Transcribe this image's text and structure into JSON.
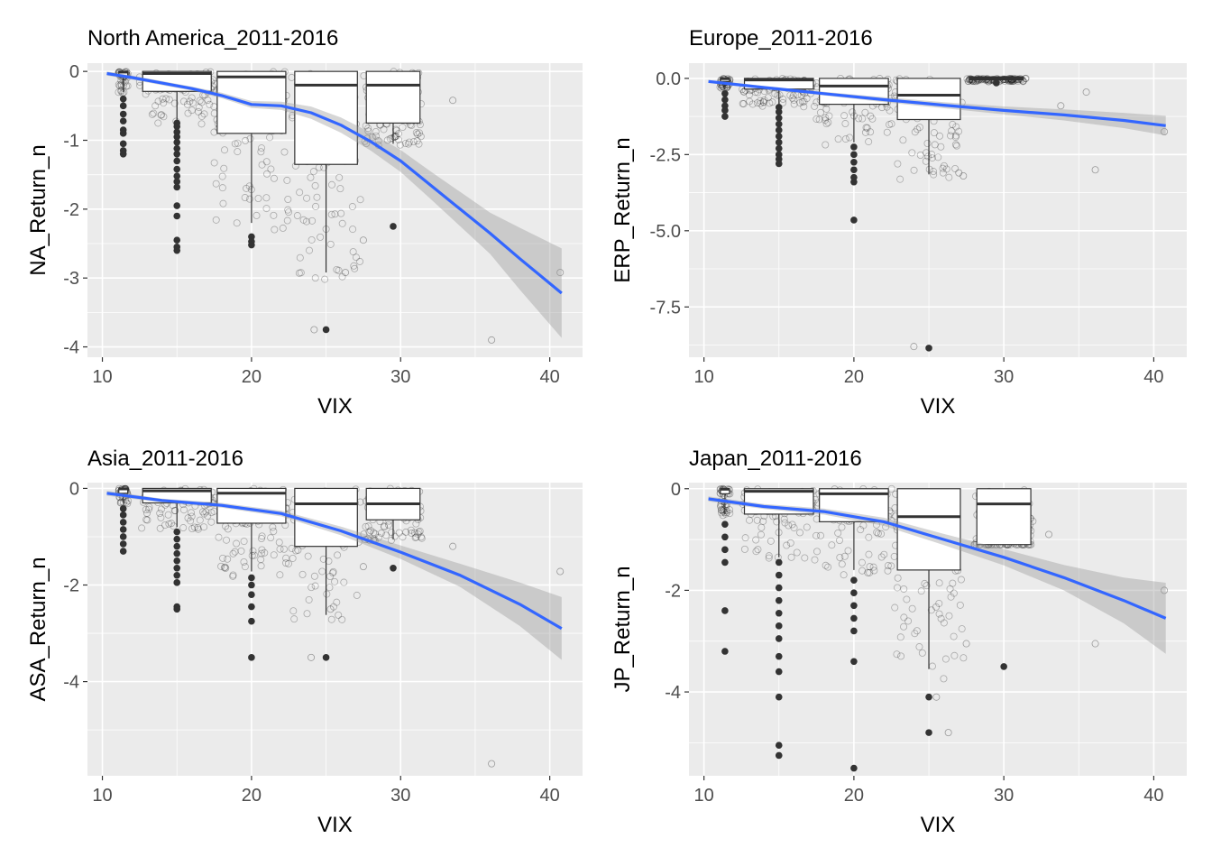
{
  "chart_data": [
    {
      "type": "boxplot-scatter-smooth",
      "title": "North America_2011-2016",
      "xlabel": "VIX",
      "ylabel": "NA_Return_n",
      "xlim": [
        9.0,
        42.2
      ],
      "ylim": [
        -4.15,
        0.12
      ],
      "x_ticks": [
        10,
        20,
        30,
        40
      ],
      "y_ticks": [
        0,
        -1,
        -2,
        -3,
        -4
      ],
      "boxes": [
        {
          "x": 15,
          "half_width": 2.3,
          "q1": -0.29,
          "median": -0.03,
          "q3": 0.0,
          "whisker_low": -0.72,
          "whisker_high": 0.0,
          "outliers": [
            -0.75,
            -0.8,
            -0.88,
            -0.95,
            -1.03,
            -1.12,
            -1.2,
            -1.3,
            -1.42,
            -1.52,
            -1.6,
            -1.68,
            -1.95,
            -2.1,
            -2.45,
            -2.55,
            -2.6
          ]
        },
        {
          "x": 20,
          "half_width": 2.3,
          "q1": -0.9,
          "median": -0.08,
          "q3": 0.0,
          "whisker_low": -2.2,
          "whisker_high": 0.0,
          "outliers": [
            -2.4,
            -2.47,
            -2.52
          ]
        },
        {
          "x": 25,
          "half_width": 2.1,
          "q1": -1.35,
          "median": -0.2,
          "q3": 0.0,
          "whisker_low": -2.92,
          "whisker_high": 0.0,
          "outliers": [
            -3.75
          ]
        },
        {
          "x": 29.5,
          "half_width": 1.8,
          "q1": -0.75,
          "median": -0.2,
          "q3": 0.0,
          "whisker_low": -1.05,
          "whisker_high": 0.0,
          "outliers": [
            -2.25
          ]
        },
        {
          "x": 11.4,
          "half_width": 0.3,
          "q1": -0.08,
          "median": -0.01,
          "q3": 0.0,
          "whisker_low": -0.3,
          "whisker_high": 0.0,
          "outliers": [
            -0.4,
            -0.5,
            -0.62,
            -0.72,
            -0.85,
            -0.9,
            -1.05,
            -1.15,
            -1.2
          ]
        }
      ],
      "smooth": {
        "x": [
          10.3,
          12,
          14,
          16,
          18,
          20,
          22,
          24,
          26,
          28,
          30,
          32,
          34,
          36,
          38,
          40.8
        ],
        "y": [
          -0.03,
          -0.09,
          -0.17,
          -0.25,
          -0.35,
          -0.48,
          -0.5,
          -0.6,
          -0.78,
          -1.02,
          -1.3,
          -1.65,
          -2.0,
          -2.35,
          -2.72,
          -3.22
        ],
        "ci_halfwidth": [
          0.03,
          0.03,
          0.03,
          0.03,
          0.04,
          0.05,
          0.06,
          0.09,
          0.11,
          0.13,
          0.16,
          0.2,
          0.25,
          0.3,
          0.45,
          0.65
        ]
      },
      "sparse_points": [
        [
          36.1,
          -3.9
        ],
        [
          40.7,
          -2.92
        ],
        [
          26.3,
          -2.92
        ],
        [
          24.2,
          -3.75
        ],
        [
          27.5,
          -2.45
        ],
        [
          30.7,
          -0.62
        ],
        [
          33.5,
          -0.42
        ]
      ]
    },
    {
      "type": "boxplot-scatter-smooth",
      "title": "Europe_2011-2016",
      "xlabel": "VIX",
      "ylabel": "ERP_Return_n",
      "xlim": [
        9.0,
        42.2
      ],
      "ylim": [
        -9.15,
        0.5
      ],
      "x_ticks": [
        10,
        20,
        30,
        40
      ],
      "y_ticks": [
        0.0,
        -2.5,
        -5.0,
        -7.5
      ],
      "y_tick_labels": [
        "0.0",
        "-2.5",
        "-5.0",
        "-7.5"
      ],
      "boxes": [
        {
          "x": 15,
          "half_width": 2.3,
          "q1": -0.35,
          "median": -0.05,
          "q3": 0.0,
          "whisker_low": -0.88,
          "whisker_high": 0.0,
          "outliers": [
            -0.95,
            -1.1,
            -1.3,
            -1.5,
            -1.7,
            -1.9,
            -2.1,
            -2.3,
            -2.5,
            -2.65,
            -2.8
          ]
        },
        {
          "x": 20,
          "half_width": 2.3,
          "q1": -0.85,
          "median": -0.25,
          "q3": 0.0,
          "whisker_low": -2.1,
          "whisker_high": 0.0,
          "outliers": [
            -2.25,
            -2.5,
            -2.75,
            -3.0,
            -3.25,
            -3.4,
            -4.65
          ]
        },
        {
          "x": 25,
          "half_width": 2.1,
          "q1": -1.35,
          "median": -0.55,
          "q3": 0.0,
          "whisker_low": -3.15,
          "whisker_high": 0.0,
          "outliers": [
            -8.85
          ]
        },
        {
          "x": 29.5,
          "half_width": 1.8,
          "q1": -0.05,
          "median": 0.0,
          "q3": 0.05,
          "whisker_low": -0.1,
          "whisker_high": 0.05,
          "outliers": [
            -0.15
          ]
        },
        {
          "x": 11.4,
          "half_width": 0.3,
          "q1": -0.1,
          "median": -0.01,
          "q3": 0.0,
          "whisker_low": -0.3,
          "whisker_high": 0.0,
          "outliers": [
            -0.5,
            -0.7,
            -0.9,
            -1.05,
            -1.25
          ]
        }
      ],
      "smooth": {
        "x": [
          10.3,
          14,
          18,
          22,
          26,
          30,
          34,
          38,
          40.8
        ],
        "y": [
          -0.1,
          -0.3,
          -0.5,
          -0.7,
          -0.88,
          -1.05,
          -1.2,
          -1.38,
          -1.55
        ],
        "ci_halfwidth": [
          0.05,
          0.05,
          0.06,
          0.08,
          0.1,
          0.13,
          0.18,
          0.25,
          0.32
        ]
      },
      "sparse_points": [
        [
          36.1,
          -3.0
        ],
        [
          40.7,
          -1.75
        ],
        [
          24.0,
          -8.8
        ],
        [
          27.0,
          -3.1
        ],
        [
          27.3,
          -3.2
        ],
        [
          33.8,
          -0.9
        ],
        [
          35.5,
          -0.45
        ]
      ]
    },
    {
      "type": "boxplot-scatter-smooth",
      "title": "Asia_2011-2016",
      "xlabel": "VIX",
      "ylabel": "ASA_Return_n",
      "xlim": [
        9.0,
        42.2
      ],
      "ylim": [
        -5.95,
        0.12
      ],
      "x_ticks": [
        10,
        20,
        30,
        40
      ],
      "y_ticks": [
        0,
        -2,
        -4
      ],
      "boxes": [
        {
          "x": 15,
          "half_width": 2.3,
          "q1": -0.3,
          "median": -0.05,
          "q3": 0.0,
          "whisker_low": -0.8,
          "whisker_high": 0.0,
          "outliers": [
            -0.9,
            -1.05,
            -1.2,
            -1.35,
            -1.5,
            -1.65,
            -1.8,
            -1.95,
            -2.45,
            -2.5
          ]
        },
        {
          "x": 20,
          "half_width": 2.3,
          "q1": -0.72,
          "median": -0.1,
          "q3": 0.0,
          "whisker_low": -1.72,
          "whisker_high": 0.0,
          "outliers": [
            -1.85,
            -2.0,
            -2.2,
            -2.45,
            -2.75,
            -3.5
          ]
        },
        {
          "x": 25,
          "half_width": 2.1,
          "q1": -1.2,
          "median": -0.32,
          "q3": 0.0,
          "whisker_low": -2.62,
          "whisker_high": 0.0,
          "outliers": [
            -3.5
          ]
        },
        {
          "x": 29.5,
          "half_width": 1.8,
          "q1": -0.65,
          "median": -0.32,
          "q3": 0.0,
          "whisker_low": -1.05,
          "whisker_high": 0.0,
          "outliers": [
            -1.65
          ]
        },
        {
          "x": 11.4,
          "half_width": 0.3,
          "q1": -0.1,
          "median": -0.01,
          "q3": 0.0,
          "whisker_low": -0.3,
          "whisker_high": 0.0,
          "outliers": [
            -0.42,
            -0.55,
            -0.7,
            -0.85,
            -1.0,
            -1.15,
            -1.3
          ]
        }
      ],
      "smooth": {
        "x": [
          10.3,
          14,
          18,
          22,
          26,
          30,
          34,
          38,
          40.8
        ],
        "y": [
          -0.1,
          -0.25,
          -0.35,
          -0.52,
          -0.88,
          -1.32,
          -1.8,
          -2.4,
          -2.9
        ],
        "ci_halfwidth": [
          0.05,
          0.04,
          0.05,
          0.06,
          0.09,
          0.14,
          0.24,
          0.45,
          0.65
        ]
      },
      "sparse_points": [
        [
          36.1,
          -5.7
        ],
        [
          40.7,
          -1.72
        ],
        [
          24.0,
          -3.5
        ],
        [
          27.5,
          -1.62
        ],
        [
          25.3,
          -2.5
        ],
        [
          33.5,
          -1.2
        ]
      ]
    },
    {
      "type": "boxplot-scatter-smooth",
      "title": "Japan_2011-2016",
      "xlabel": "VIX",
      "ylabel": "JP_Return_n",
      "xlim": [
        9.0,
        42.2
      ],
      "ylim": [
        -5.65,
        0.12
      ],
      "x_ticks": [
        10,
        20,
        30,
        40
      ],
      "y_ticks": [
        0,
        -2,
        -4
      ],
      "boxes": [
        {
          "x": 15,
          "half_width": 2.3,
          "q1": -0.5,
          "median": -0.05,
          "q3": 0.0,
          "whisker_low": -1.35,
          "whisker_high": 0.0,
          "outliers": [
            -1.45,
            -1.7,
            -1.95,
            -2.2,
            -2.45,
            -2.7,
            -2.95,
            -3.3,
            -3.6,
            -4.1,
            -5.05,
            -5.25
          ]
        },
        {
          "x": 20,
          "half_width": 2.3,
          "q1": -0.65,
          "median": -0.1,
          "q3": 0.0,
          "whisker_low": -1.6,
          "whisker_high": 0.0,
          "outliers": [
            -1.8,
            -2.05,
            -2.3,
            -2.55,
            -2.8,
            -3.4,
            -5.5
          ]
        },
        {
          "x": 25,
          "half_width": 2.1,
          "q1": -1.6,
          "median": -0.55,
          "q3": 0.0,
          "whisker_low": -3.55,
          "whisker_high": 0.0,
          "outliers": [
            -4.1,
            -4.8
          ]
        },
        {
          "x": 30,
          "half_width": 1.8,
          "q1": -1.1,
          "median": -0.3,
          "q3": 0.0,
          "whisker_low": -1.1,
          "whisker_high": 0.0,
          "outliers": [
            -3.5
          ]
        },
        {
          "x": 11.4,
          "half_width": 0.3,
          "q1": -0.1,
          "median": -0.01,
          "q3": 0.0,
          "whisker_low": -0.5,
          "whisker_high": 0.0,
          "outliers": [
            -0.7,
            -0.95,
            -1.2,
            -1.45,
            -2.4,
            -3.2
          ]
        }
      ],
      "smooth": {
        "x": [
          10.3,
          14,
          18,
          22,
          26,
          30,
          34,
          38,
          40.8
        ],
        "y": [
          -0.2,
          -0.35,
          -0.45,
          -0.65,
          -1.0,
          -1.35,
          -1.75,
          -2.2,
          -2.55
        ],
        "ci_halfwidth": [
          0.05,
          0.05,
          0.06,
          0.08,
          0.11,
          0.16,
          0.25,
          0.45,
          0.7
        ]
      },
      "sparse_points": [
        [
          36.1,
          -3.05
        ],
        [
          40.7,
          -2.0
        ],
        [
          26.3,
          -4.8
        ],
        [
          25.5,
          -4.1
        ],
        [
          27.5,
          -3.05
        ],
        [
          33.0,
          -0.9
        ],
        [
          31.0,
          -0.6
        ]
      ]
    }
  ]
}
